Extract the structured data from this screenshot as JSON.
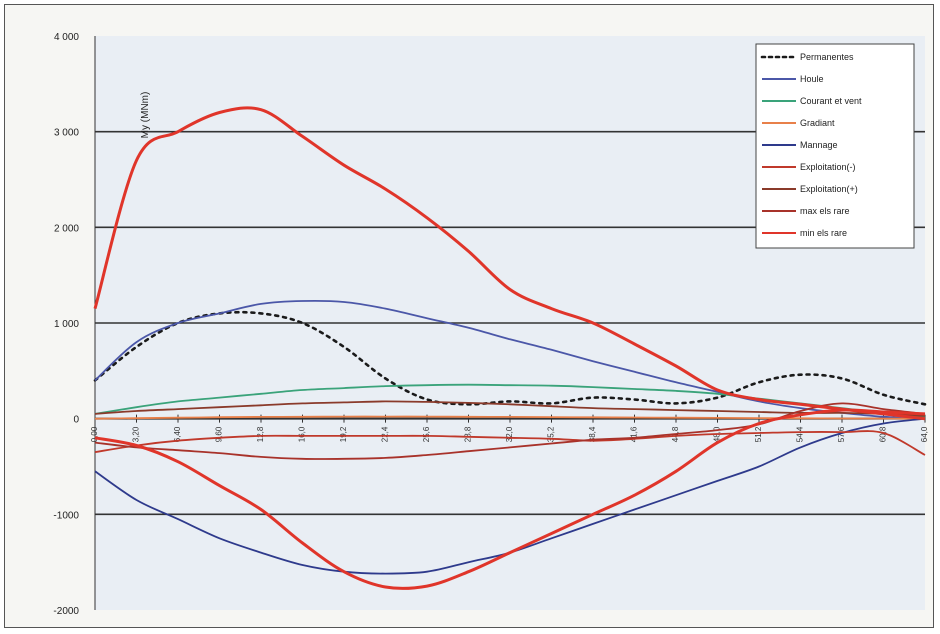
{
  "chart_data": {
    "type": "line",
    "ylabel": "My (MNm)",
    "ylim": [
      -2000,
      4000
    ],
    "yticks": [
      4000,
      3000,
      2000,
      1000,
      0,
      -1000,
      -2000
    ],
    "ytick_labels": [
      "4 000",
      "3 000",
      "2 000",
      "1 000",
      "0",
      "-1000",
      "-2000"
    ],
    "grid": true,
    "legend_position": "top-right",
    "x": [
      0,
      5,
      10,
      15,
      20,
      25,
      30,
      35,
      40,
      45,
      50,
      55,
      60,
      65,
      70,
      75,
      80,
      85,
      90,
      95,
      100
    ],
    "x_tick_labels": [
      "0,00",
      "3,20",
      "6,40",
      "9,60",
      "12,8",
      "16,0",
      "19,2",
      "22,4",
      "25,6",
      "28,8",
      "32,0",
      "35,2",
      "38,4",
      "41,6",
      "44,8",
      "48,0",
      "51,2",
      "54,4",
      "57,6",
      "60,8",
      "64,0"
    ],
    "series": [
      {
        "name": "Permanentes",
        "color": "#1a1a1a",
        "style": "dotted",
        "values": [
          400,
          750,
          1000,
          1100,
          1100,
          1000,
          750,
          420,
          200,
          150,
          180,
          160,
          220,
          200,
          160,
          220,
          380,
          460,
          420,
          250,
          150
        ]
      },
      {
        "name": "Houle",
        "color": "#4b57a8",
        "style": "solid",
        "values": [
          400,
          800,
          1000,
          1100,
          1200,
          1230,
          1220,
          1150,
          1050,
          950,
          830,
          720,
          600,
          490,
          380,
          280,
          180,
          110,
          60,
          20,
          0
        ]
      },
      {
        "name": "Courant et vent",
        "color": "#3aa37a",
        "style": "solid",
        "values": [
          50,
          120,
          180,
          220,
          260,
          300,
          320,
          340,
          350,
          355,
          350,
          345,
          330,
          310,
          290,
          260,
          210,
          160,
          110,
          60,
          20
        ]
      },
      {
        "name": "Gradiant",
        "color": "#e8804a",
        "style": "solid",
        "values": [
          0,
          5,
          10,
          15,
          18,
          20,
          22,
          22,
          22,
          20,
          18,
          16,
          14,
          12,
          10,
          8,
          6,
          4,
          2,
          1,
          0
        ]
      },
      {
        "name": "Mannage",
        "color": "#2e3a8c",
        "style": "solid",
        "values": [
          -550,
          -850,
          -1050,
          -1250,
          -1400,
          -1530,
          -1600,
          -1620,
          -1600,
          -1500,
          -1400,
          -1250,
          -1100,
          -950,
          -800,
          -650,
          -500,
          -300,
          -150,
          -50,
          0
        ]
      },
      {
        "name": "Exploitation(-)",
        "color": "#c0392b",
        "style": "solid",
        "values": [
          -350,
          -280,
          -230,
          -200,
          -180,
          -180,
          -180,
          -180,
          -180,
          -190,
          -200,
          -210,
          -230,
          -210,
          -180,
          -160,
          -150,
          -140,
          -140,
          -150,
          -380
        ]
      },
      {
        "name": "Exploitation(+)",
        "color": "#8a3a2a",
        "style": "solid",
        "values": [
          50,
          80,
          100,
          120,
          140,
          160,
          170,
          180,
          175,
          165,
          150,
          130,
          110,
          100,
          90,
          80,
          70,
          60,
          60,
          50,
          30
        ]
      },
      {
        "name": "max els rare",
        "color": "#a8322a",
        "style": "solid",
        "values": [
          -250,
          -300,
          -330,
          -360,
          -400,
          -420,
          -420,
          -410,
          -380,
          -340,
          -300,
          -260,
          -220,
          -200,
          -160,
          -120,
          -60,
          80,
          160,
          100,
          50
        ]
      },
      {
        "name": "min els rare",
        "color": "#e0352a",
        "style": "solid",
        "values": [
          1150,
          2700,
          3000,
          3200,
          3230,
          2950,
          2650,
          2400,
          2100,
          1750,
          1350,
          1150,
          1000,
          780,
          550,
          300,
          200,
          150,
          100,
          50,
          0
        ]
      },
      {
        "name": "",
        "color": "#e0352a",
        "style": "solid",
        "values": [
          -200,
          -280,
          -450,
          -700,
          -950,
          -1300,
          -1600,
          -1760,
          -1750,
          -1600,
          -1400,
          -1200,
          -1000,
          -800,
          -550,
          -250,
          -50,
          40,
          90,
          70,
          50
        ]
      }
    ]
  }
}
